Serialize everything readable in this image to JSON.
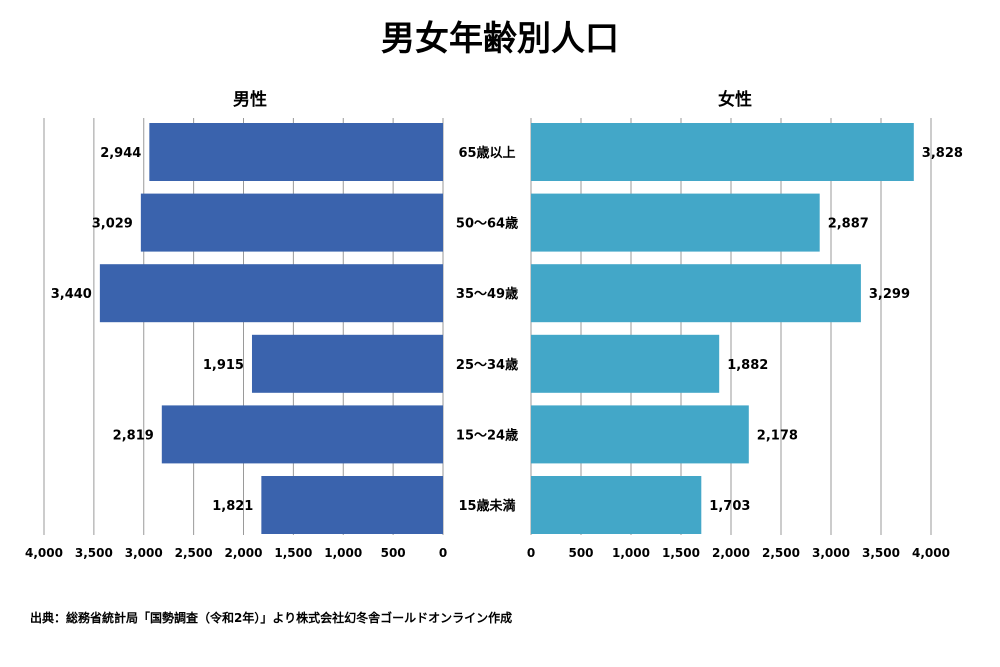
{
  "title": "男女年齢別人口",
  "source": "出典：総務省統計局「国勢調査（令和2年）」より株式会社幻冬舎ゴールドオンライン作成",
  "colors": {
    "male": "#3a63ad",
    "female": "#43a7c8"
  },
  "chart_data": [
    {
      "type": "bar",
      "orientation": "horizontal",
      "title": "男性",
      "categories": [
        "65歳以上",
        "50〜64歳",
        "35〜49歳",
        "25〜34歳",
        "15〜24歳",
        "15歳未満"
      ],
      "values": [
        2944,
        3029,
        3440,
        1915,
        2819,
        1821
      ],
      "value_labels": [
        "2,944",
        "3,029",
        "3,440",
        "1,915",
        "2,819",
        "1,821"
      ],
      "xlim": [
        0,
        4000
      ],
      "x_reversed": true,
      "x_ticks": [
        4000,
        3500,
        3000,
        2500,
        2000,
        1500,
        1000,
        500,
        0
      ],
      "x_tick_labels": [
        "4,000",
        "3,500",
        "3,000",
        "2,500",
        "2,000",
        "1,500",
        "1,000",
        "500",
        "0"
      ],
      "grid": true
    },
    {
      "type": "bar",
      "orientation": "horizontal",
      "title": "女性",
      "categories": [
        "65歳以上",
        "50〜64歳",
        "35〜49歳",
        "25〜34歳",
        "15〜24歳",
        "15歳未満"
      ],
      "values": [
        3828,
        2887,
        3299,
        1882,
        2178,
        1703
      ],
      "value_labels": [
        "3,828",
        "2,887",
        "3,299",
        "1,882",
        "2,178",
        "1,703"
      ],
      "xlim": [
        0,
        4000
      ],
      "x_ticks": [
        0,
        500,
        1000,
        1500,
        2000,
        2500,
        3000,
        3500,
        4000
      ],
      "x_tick_labels": [
        "0",
        "500",
        "1,000",
        "1,500",
        "2,000",
        "2,500",
        "3,000",
        "3,500",
        "4,000"
      ],
      "grid": true
    }
  ]
}
